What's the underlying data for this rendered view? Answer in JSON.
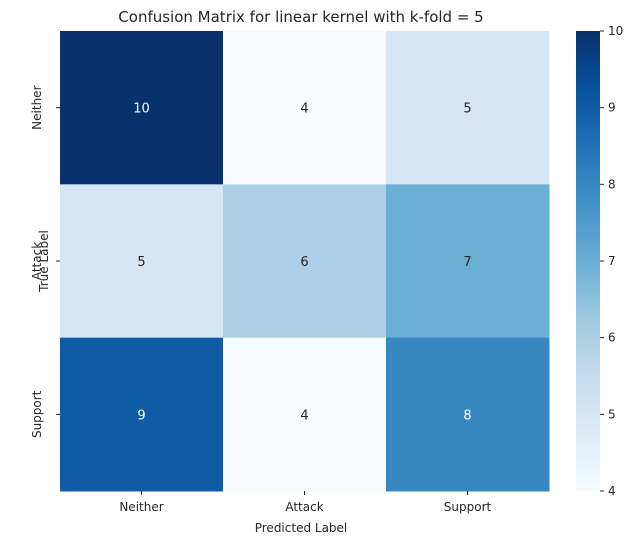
{
  "chart_data": {
    "type": "heatmap",
    "title": "Confusion Matrix for linear kernel with k-fold = 5",
    "xlabel": "Predicted Label",
    "ylabel": "True Label",
    "x_categories": [
      "Neither",
      "Attack",
      "Support"
    ],
    "y_categories": [
      "Neither",
      "Attack",
      "Support"
    ],
    "values": [
      [
        10,
        4,
        5
      ],
      [
        5,
        6,
        7
      ],
      [
        9,
        4,
        8
      ]
    ],
    "colorbar": {
      "range": [
        4,
        10
      ],
      "ticks": [
        "4",
        "5",
        "6",
        "7",
        "8",
        "9",
        "10"
      ],
      "colormap": "Blues"
    },
    "grid": false
  }
}
